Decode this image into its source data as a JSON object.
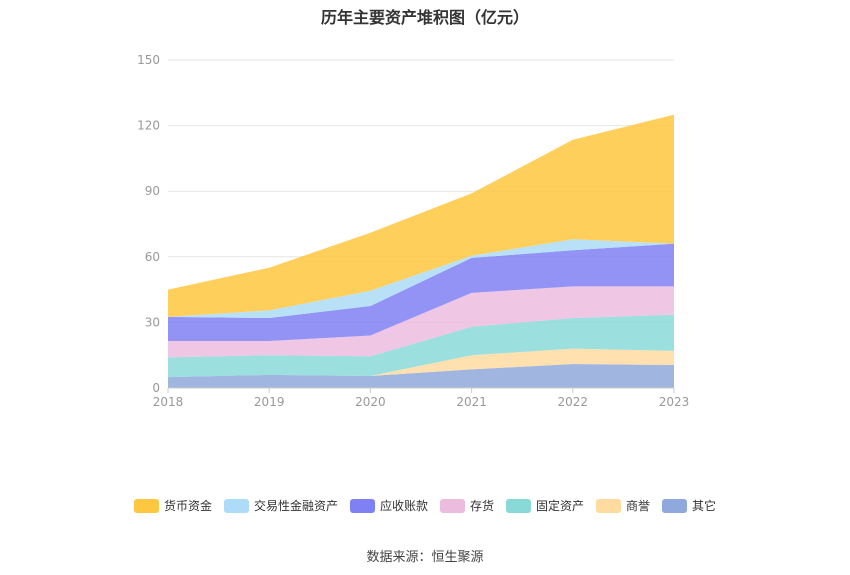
{
  "chart_data": {
    "type": "area",
    "stacked": true,
    "title": "历年主要资产堆积图（亿元）",
    "categories": [
      "2018",
      "2019",
      "2020",
      "2021",
      "2022",
      "2023"
    ],
    "ylim": [
      0,
      150
    ],
    "yticks": [
      0,
      30,
      60,
      90,
      120,
      150
    ],
    "grid": true,
    "legend_position": "bottom",
    "series": [
      {
        "name": "其它",
        "color": "#8fa9dc",
        "values": [
          5,
          6,
          5.5,
          8.5,
          11,
          10.5
        ]
      },
      {
        "name": "商誉",
        "color": "#ffdba0",
        "values": [
          0,
          0,
          0,
          6.5,
          7,
          6.5
        ]
      },
      {
        "name": "固定资产",
        "color": "#8ad9d9",
        "values": [
          9,
          9,
          9,
          13,
          14,
          16.5
        ]
      },
      {
        "name": "存货",
        "color": "#ecbcdf",
        "values": [
          7.5,
          6.5,
          9.5,
          15.5,
          14.5,
          13
        ]
      },
      {
        "name": "应收账款",
        "color": "#8080f5",
        "values": [
          11,
          10.5,
          13.5,
          16,
          16.5,
          19.5
        ]
      },
      {
        "name": "交易性金融资产",
        "color": "#acdcf7",
        "values": [
          0,
          3.5,
          7,
          1,
          5,
          0
        ]
      },
      {
        "name": "货币资金",
        "color": "#ffc740",
        "values": [
          12.5,
          19.5,
          26.5,
          28.5,
          45.5,
          59
        ]
      }
    ]
  },
  "legend_items": [
    {
      "label": "货币资金",
      "color": "#ffc740"
    },
    {
      "label": "交易性金融资产",
      "color": "#acdcf7"
    },
    {
      "label": "应收账款",
      "color": "#8080f5"
    },
    {
      "label": "存货",
      "color": "#ecbcdf"
    },
    {
      "label": "固定资产",
      "color": "#8ad9d9"
    },
    {
      "label": "商誉",
      "color": "#ffdba0"
    },
    {
      "label": "其它",
      "color": "#8fa9dc"
    }
  ],
  "source_note": "数据来源：恒生聚源"
}
